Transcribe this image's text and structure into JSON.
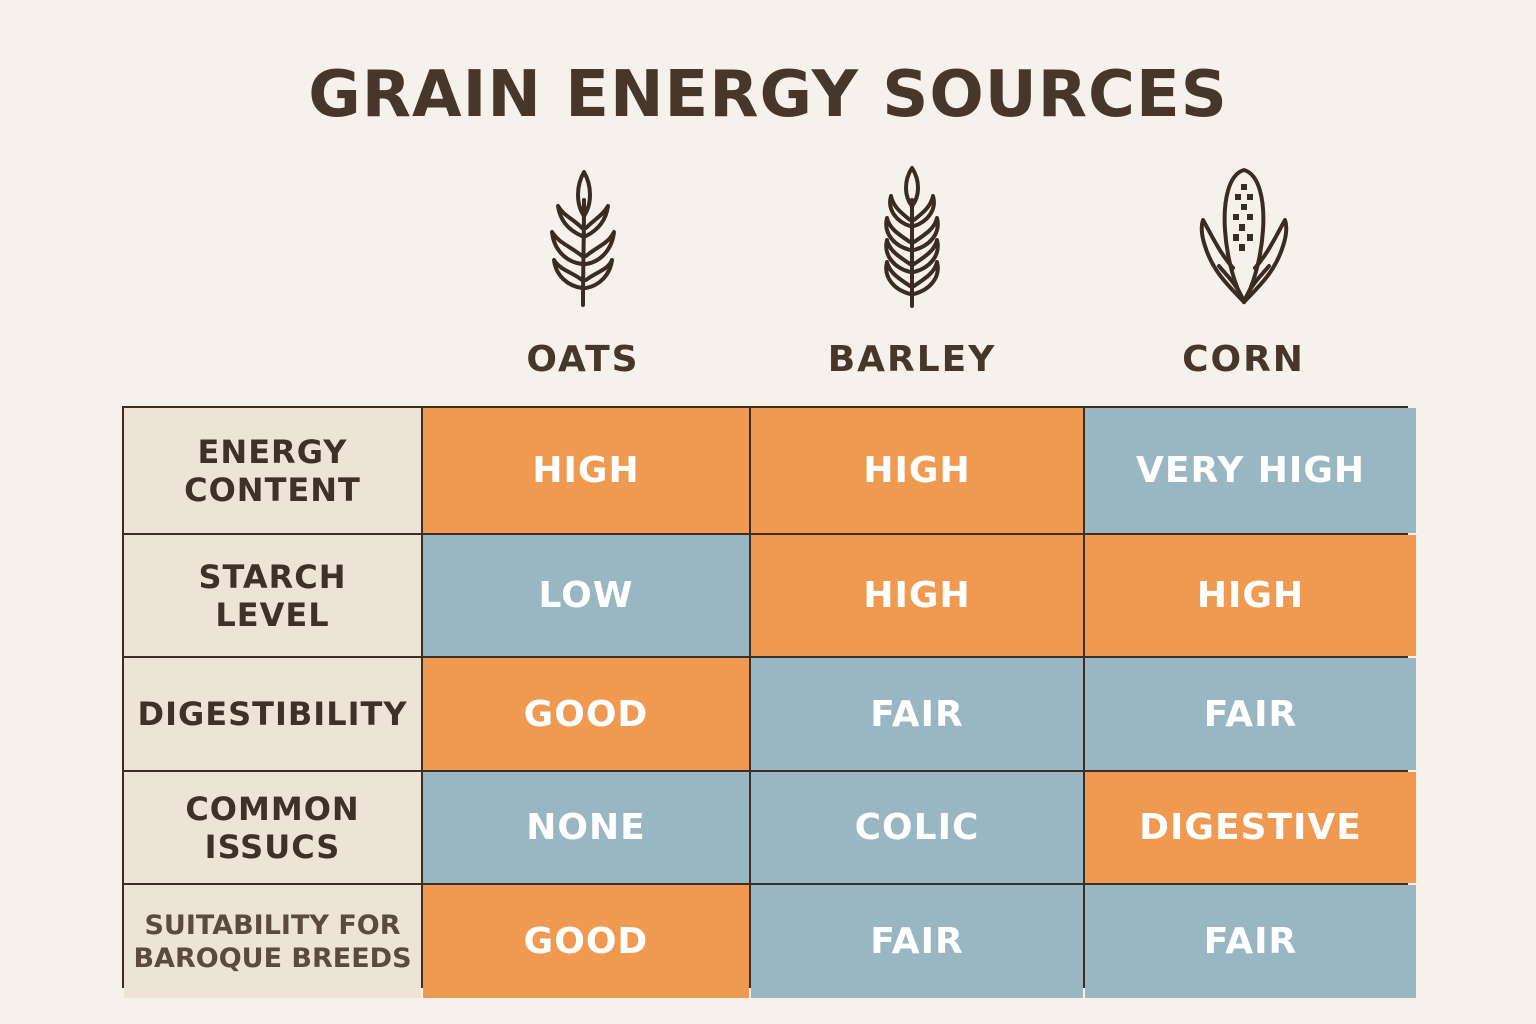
{
  "title": "GRAIN ENERGY SOURCES",
  "colors": {
    "background": "#f6f2eb",
    "high_tone": "#ef9a50",
    "low_tone": "#99b7c3",
    "row_header": "#ede3d6",
    "text": "#47372b"
  },
  "columns": [
    {
      "label": "OATS",
      "icon": "oat-sprig-icon"
    },
    {
      "label": "BARLEY",
      "icon": "barley-ear-icon"
    },
    {
      "label": "CORN",
      "icon": "corn-cob-icon"
    }
  ],
  "rows": [
    {
      "label": "ENERGY\nCONTENT",
      "values": [
        "HIGH",
        "HIGH",
        "VERY HIGH"
      ],
      "tones": [
        "orange",
        "orange",
        "blue"
      ]
    },
    {
      "label": "STARCH\nLEVEL",
      "values": [
        "LOW",
        "HIGH",
        "HIGH"
      ],
      "tones": [
        "blue",
        "orange",
        "orange"
      ]
    },
    {
      "label": "DIGESTIBILITY",
      "values": [
        "GOOD",
        "FAIR",
        "FAIR"
      ],
      "tones": [
        "orange",
        "blue",
        "blue"
      ]
    },
    {
      "label": "COMMON\nISSUCS",
      "values": [
        "NONE",
        "COLIC",
        "DIGESTIVE"
      ],
      "tones": [
        "blue",
        "blue",
        "orange"
      ]
    },
    {
      "label": "SUITABILITY FOR\nBAROQUE BREEDS",
      "values": [
        "GOOD",
        "FAIR",
        "FAIR"
      ],
      "tones": [
        "orange",
        "blue",
        "blue"
      ]
    }
  ]
}
